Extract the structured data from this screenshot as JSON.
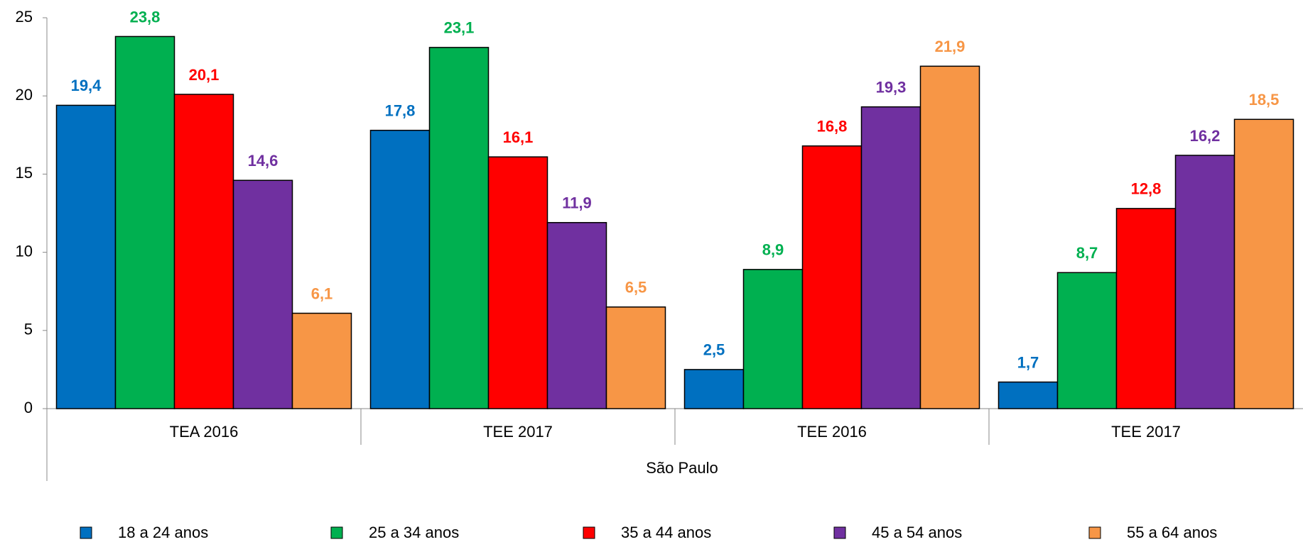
{
  "chart_data": {
    "type": "bar",
    "categories": [
      "TEA 2016",
      "TEE 2017",
      "TEE 2016",
      "TEE 2017"
    ],
    "group_label": "São Paulo",
    "ylim": [
      0,
      25
    ],
    "yticks": [
      0,
      5,
      10,
      15,
      20,
      25
    ],
    "legend": "bottom",
    "series": [
      {
        "name": "18 a 24 anos",
        "color": "#0070c0",
        "values": [
          19.4,
          17.8,
          2.5,
          1.7
        ],
        "value_labels": [
          "19,4",
          "17,8",
          "2,5",
          "1,7"
        ]
      },
      {
        "name": "25 a 34 anos",
        "color": "#00b050",
        "values": [
          23.8,
          23.1,
          8.9,
          8.7
        ],
        "value_labels": [
          "23,8",
          "23,1",
          "8,9",
          "8,7"
        ]
      },
      {
        "name": "35 a 44 anos",
        "color": "#ff0000",
        "values": [
          20.1,
          16.1,
          16.8,
          12.8
        ],
        "value_labels": [
          "20,1",
          "16,1",
          "16,8",
          "12,8"
        ]
      },
      {
        "name": "45 a 54 anos",
        "color": "#7030a0",
        "values": [
          14.6,
          11.9,
          19.3,
          16.2
        ],
        "value_labels": [
          "14,6",
          "11,9",
          "19,3",
          "16,2"
        ]
      },
      {
        "name": "55 a 64 anos",
        "color": "#f79646",
        "values": [
          6.1,
          6.5,
          21.9,
          18.5
        ],
        "value_labels": [
          "6,1",
          "6,5",
          "21,9",
          "18,5"
        ]
      }
    ]
  }
}
